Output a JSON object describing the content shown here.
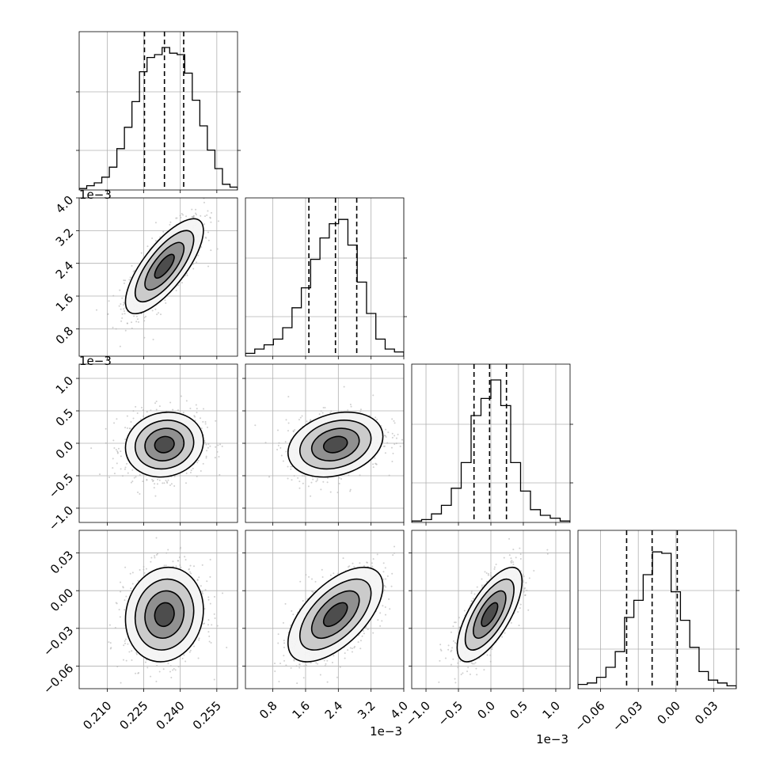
{
  "chart_data": {
    "type": "corner",
    "parameters": [
      {
        "range": [
          0.1985,
          0.2635
        ],
        "ticks": [
          0.21,
          0.225,
          0.24,
          0.255
        ],
        "tick_labels": [
          "0.210",
          "0.225",
          "0.240",
          "0.255"
        ],
        "offset_label": "",
        "quantiles": [
          0.2253,
          0.2335,
          0.2414
        ],
        "center": 0.2335,
        "sigma": 0.008
      },
      {
        "range": [
          0.00013,
          0.004
        ],
        "ticks": [
          0.0008,
          0.0016,
          0.0024,
          0.0032,
          0.004
        ],
        "tick_labels": [
          "0.8",
          "1.6",
          "2.4",
          "3.2",
          "4.0"
        ],
        "offset_label": "1e−3",
        "quantiles": [
          0.00168,
          0.00233,
          0.00285
        ],
        "center": 0.00233,
        "sigma": 0.00058
      },
      {
        "range": [
          -0.00122,
          0.00122
        ],
        "ticks": [
          -0.001,
          -0.0005,
          0.0,
          0.0005,
          0.001
        ],
        "tick_labels": [
          "−1.0",
          "−0.5",
          "0.0",
          "0.5",
          "1.0"
        ],
        "offset_label": "1e−3",
        "quantiles": [
          -0.00026,
          -2e-05,
          0.00024
        ],
        "center": -2e-05,
        "sigma": 0.00025
      },
      {
        "range": [
          -0.078,
          0.048
        ],
        "ticks": [
          -0.06,
          -0.03,
          0.0,
          0.03
        ],
        "tick_labels": [
          "−0.06",
          "−0.03",
          "0.00",
          "0.03"
        ],
        "offset_label": "",
        "quantiles": [
          -0.0393,
          -0.019,
          0.001
        ],
        "center": -0.019,
        "sigma": 0.0188
      }
    ],
    "correlations": [
      {
        "pair": [
          0,
          1
        ],
        "rho": 0.75
      },
      {
        "pair": [
          0,
          2
        ],
        "rho": 0.1
      },
      {
        "pair": [
          1,
          2
        ],
        "rho": 0.25
      },
      {
        "pair": [
          0,
          3
        ],
        "rho": 0.1
      },
      {
        "pair": [
          1,
          3
        ],
        "rho": 0.6
      },
      {
        "pair": [
          2,
          3
        ],
        "rho": 0.7
      }
    ],
    "histograms": [
      {
        "counts": [
          0.01,
          0.03,
          0.05,
          0.09,
          0.16,
          0.29,
          0.44,
          0.62,
          0.83,
          0.93,
          0.95,
          1.0,
          0.96,
          0.95,
          0.82,
          0.63,
          0.45,
          0.28,
          0.15,
          0.04,
          0.02
        ]
      },
      {
        "counts": [
          0.02,
          0.05,
          0.08,
          0.12,
          0.2,
          0.34,
          0.48,
          0.68,
          0.83,
          0.93,
          0.96,
          0.78,
          0.52,
          0.3,
          0.12,
          0.05,
          0.03
        ]
      },
      {
        "counts": [
          0.01,
          0.02,
          0.06,
          0.12,
          0.24,
          0.42,
          0.75,
          0.87,
          1.0,
          0.82,
          0.42,
          0.22,
          0.09,
          0.05,
          0.03,
          0.01
        ]
      },
      {
        "counts": [
          0.03,
          0.04,
          0.08,
          0.15,
          0.26,
          0.5,
          0.62,
          0.8,
          0.96,
          0.95,
          0.68,
          0.48,
          0.29,
          0.12,
          0.06,
          0.04,
          0.02
        ]
      }
    ],
    "levels": [
      0.5,
      1.0,
      1.5,
      2.0
    ],
    "grid": true,
    "contour_color": "#000000",
    "point_color": "#b0b0b0"
  }
}
